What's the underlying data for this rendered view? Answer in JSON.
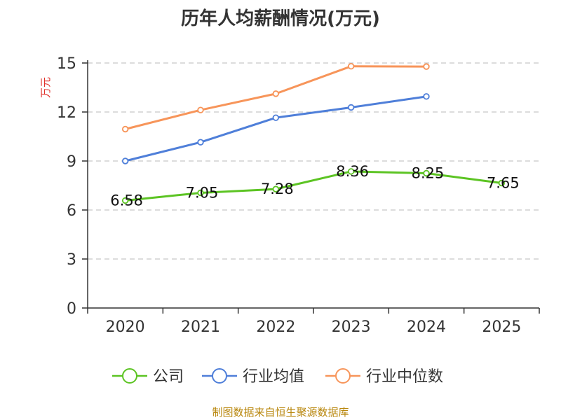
{
  "chart_data": {
    "type": "line",
    "title": "历年人均薪酬情况(万元)",
    "xlabel": "",
    "ylabel": "万元",
    "ylim": [
      0,
      15
    ],
    "yticks": [
      0,
      3,
      6,
      9,
      12,
      15
    ],
    "grid": "horizontal-dashed",
    "categories": [
      "2020",
      "2021",
      "2022",
      "2023",
      "2024",
      "2025"
    ],
    "series": [
      {
        "name": "公司",
        "color": "#5cc423",
        "values": [
          6.58,
          7.05,
          7.28,
          8.36,
          8.25,
          7.65
        ],
        "labels": [
          "6.58",
          "7.05",
          "7.28",
          "8.36",
          "8.25",
          "7.65"
        ]
      },
      {
        "name": "行业均值",
        "color": "#4f7fd9",
        "values": [
          9.0,
          10.15,
          11.65,
          12.28,
          12.95,
          null
        ]
      },
      {
        "name": "行业中位数",
        "color": "#f7955a",
        "values": [
          10.95,
          12.12,
          13.12,
          14.8,
          14.78,
          null
        ]
      }
    ],
    "legend": "bottom-center"
  },
  "source_note": "制图数据来自恒生聚源数据库"
}
